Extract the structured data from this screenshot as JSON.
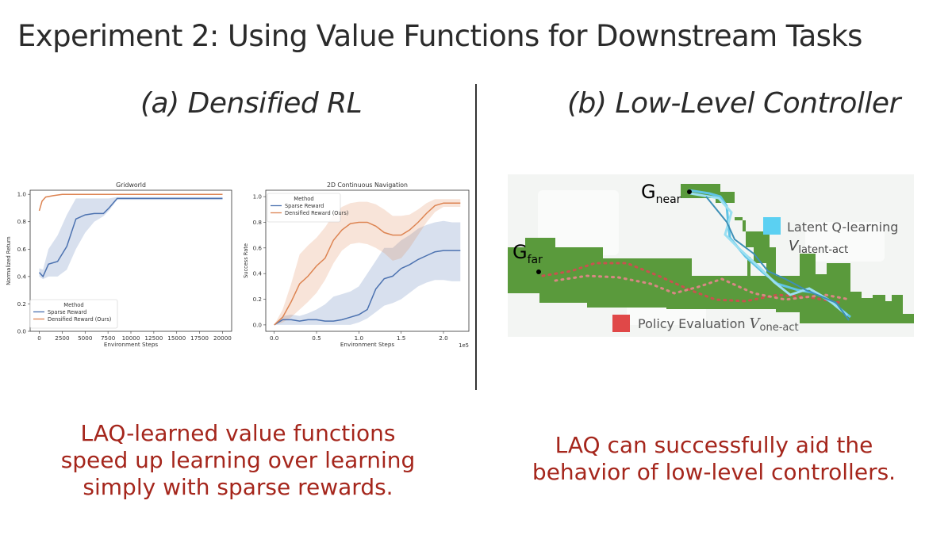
{
  "slide": {
    "title": "Experiment 2: Using Value Functions for Downstream Tasks",
    "section_a": "(a) Densified RL",
    "section_b": "(b) Low-Level Controller",
    "caption_a": "LAQ-learned value functions speed up learning over learning simply with sparse rewards.",
    "caption_b": "LAQ can successfully aid the behavior of low-level controllers."
  },
  "colors": {
    "sparse": "#4c72b0",
    "densified": "#dd8452",
    "caption": "#a5261c",
    "map_green": "#5a9a3c",
    "latent_legend": "#5bd0f2",
    "policy_legend": "#e04848"
  },
  "chart_data": [
    {
      "type": "line",
      "title": "Gridworld",
      "xlabel": "Environment Steps",
      "ylabel": "Normalized Return",
      "xlim": [
        -1000,
        21000
      ],
      "ylim": [
        0,
        1.03
      ],
      "x_ticks": [
        0,
        2500,
        5000,
        7500,
        10000,
        12500,
        15000,
        17500,
        20000
      ],
      "y_ticks": [
        0.0,
        0.2,
        0.4,
        0.6,
        0.8,
        1.0
      ],
      "y_tick_labels": [
        "0.0",
        "0.2",
        "0.4",
        "0.6",
        "0.8",
        "1.0"
      ],
      "grid": false,
      "legend_title": "Method",
      "legend_position": "lower-left",
      "series": [
        {
          "name": "Sparse Reward",
          "color": "#4c72b0",
          "x": [
            0,
            400,
            1000,
            2000,
            3000,
            4000,
            5000,
            6000,
            7000,
            7600,
            8500,
            10000,
            15000,
            20000
          ],
          "y": [
            0.43,
            0.4,
            0.49,
            0.51,
            0.62,
            0.82,
            0.85,
            0.86,
            0.86,
            0.9,
            0.97,
            0.97,
            0.97,
            0.97
          ],
          "lower": [
            0.4,
            0.38,
            0.4,
            0.4,
            0.45,
            0.6,
            0.72,
            0.8,
            0.84,
            0.88,
            0.96,
            0.96,
            0.96,
            0.96
          ],
          "upper": [
            0.46,
            0.45,
            0.6,
            0.7,
            0.85,
            0.97,
            0.97,
            0.97,
            0.97,
            0.97,
            0.98,
            0.98,
            0.98,
            0.98
          ]
        },
        {
          "name": "Densified Reward (Ours)",
          "color": "#dd8452",
          "x": [
            0,
            300,
            700,
            1500,
            2500,
            5000,
            10000,
            15000,
            20000
          ],
          "y": [
            0.88,
            0.95,
            0.98,
            0.99,
            1.0,
            1.0,
            1.0,
            1.0,
            1.0
          ]
        }
      ]
    },
    {
      "type": "line",
      "title": "2D Continuous Navigation",
      "xlabel": "Environment Steps",
      "ylabel": "Success Rate",
      "x_scale_label": "1e5",
      "xlim": [
        -0.1,
        2.3
      ],
      "ylim": [
        -0.05,
        1.05
      ],
      "x_ticks": [
        0.0,
        0.5,
        1.0,
        1.5,
        2.0
      ],
      "x_tick_labels": [
        "0.0",
        "0.5",
        "1.0",
        "1.5",
        "2.0"
      ],
      "y_ticks": [
        0.0,
        0.2,
        0.4,
        0.6,
        0.8,
        1.0
      ],
      "y_tick_labels": [
        "0.0",
        "0.2",
        "0.4",
        "0.6",
        "0.8",
        "1.0"
      ],
      "grid": false,
      "legend_title": "Method",
      "legend_position": "upper-left",
      "series": [
        {
          "name": "Sparse Reward",
          "color": "#4c72b0",
          "x": [
            0.0,
            0.1,
            0.2,
            0.3,
            0.4,
            0.5,
            0.6,
            0.7,
            0.8,
            0.9,
            1.0,
            1.1,
            1.2,
            1.3,
            1.4,
            1.5,
            1.6,
            1.7,
            1.8,
            1.9,
            2.0,
            2.1,
            2.2
          ],
          "y": [
            0.0,
            0.04,
            0.04,
            0.03,
            0.04,
            0.04,
            0.03,
            0.03,
            0.04,
            0.06,
            0.08,
            0.12,
            0.28,
            0.36,
            0.38,
            0.44,
            0.47,
            0.51,
            0.54,
            0.57,
            0.58,
            0.58,
            0.58
          ],
          "lower": [
            0.0,
            0.0,
            0.0,
            0.0,
            0.0,
            0.0,
            0.0,
            0.0,
            0.0,
            0.0,
            0.02,
            0.05,
            0.1,
            0.15,
            0.17,
            0.2,
            0.25,
            0.3,
            0.33,
            0.35,
            0.35,
            0.34,
            0.34
          ],
          "upper": [
            0.0,
            0.07,
            0.08,
            0.07,
            0.09,
            0.12,
            0.16,
            0.22,
            0.24,
            0.26,
            0.3,
            0.4,
            0.5,
            0.6,
            0.6,
            0.66,
            0.7,
            0.75,
            0.78,
            0.8,
            0.81,
            0.8,
            0.8
          ]
        },
        {
          "name": "Densified Reward (Ours)",
          "color": "#dd8452",
          "x": [
            0.0,
            0.1,
            0.2,
            0.3,
            0.4,
            0.5,
            0.6,
            0.7,
            0.8,
            0.9,
            1.0,
            1.1,
            1.2,
            1.3,
            1.4,
            1.5,
            1.6,
            1.7,
            1.8,
            1.9,
            2.0,
            2.1,
            2.2
          ],
          "y": [
            0.0,
            0.06,
            0.18,
            0.32,
            0.38,
            0.46,
            0.52,
            0.66,
            0.74,
            0.79,
            0.8,
            0.8,
            0.77,
            0.72,
            0.7,
            0.7,
            0.74,
            0.8,
            0.87,
            0.93,
            0.95,
            0.95,
            0.95
          ],
          "lower": [
            0.0,
            0.02,
            0.06,
            0.12,
            0.18,
            0.25,
            0.35,
            0.48,
            0.58,
            0.63,
            0.64,
            0.63,
            0.6,
            0.56,
            0.5,
            0.52,
            0.6,
            0.7,
            0.8,
            0.88,
            0.92,
            0.92,
            0.92
          ],
          "upper": [
            0.0,
            0.12,
            0.32,
            0.55,
            0.62,
            0.68,
            0.76,
            0.86,
            0.92,
            0.95,
            0.96,
            0.96,
            0.94,
            0.9,
            0.85,
            0.85,
            0.86,
            0.9,
            0.95,
            0.98,
            0.98,
            0.98,
            0.98
          ]
        }
      ]
    }
  ],
  "nav_figure": {
    "labels": {
      "g_near": "G",
      "g_near_sub": "near",
      "g_far": "G",
      "g_far_sub": "far",
      "latent_legend": "Latent Q-learning",
      "latent_value": "V",
      "latent_value_sub": "latent-act",
      "policy_legend": "Policy Evaluation",
      "policy_value": "V",
      "policy_value_sub": "one-act"
    }
  }
}
